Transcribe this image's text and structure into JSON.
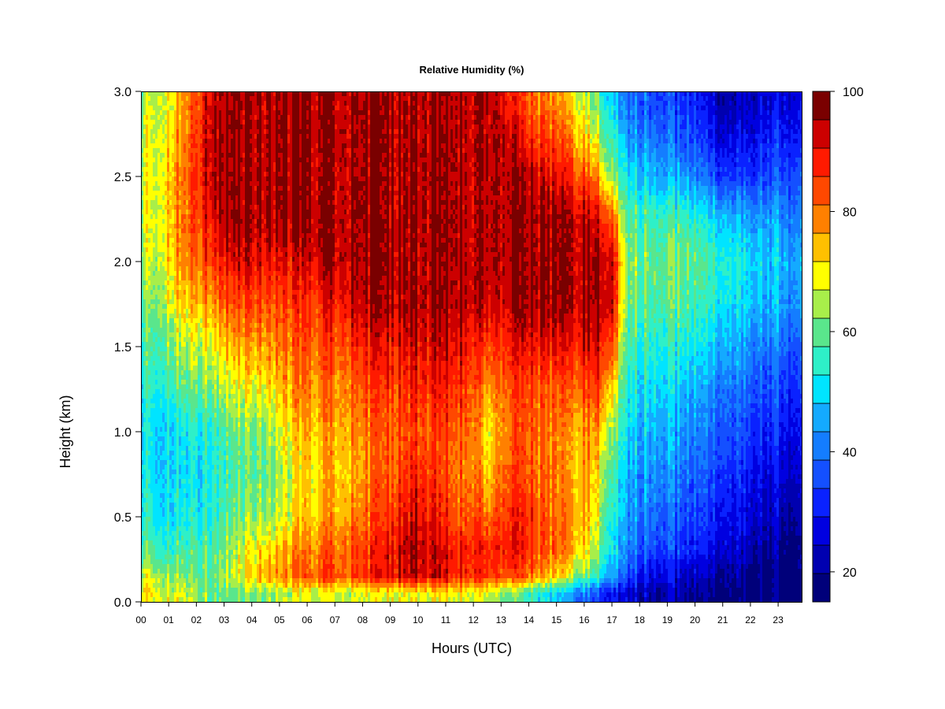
{
  "chart_data": {
    "type": "heatmap",
    "title": "Relative Humidity (%)",
    "xlabel": "Hours (UTC)",
    "ylabel": "Height (km)",
    "xlim": [
      0,
      23.85
    ],
    "ylim": [
      0.0,
      3.0
    ],
    "x_ticks": [
      "00",
      "01",
      "02",
      "03",
      "04",
      "05",
      "06",
      "07",
      "08",
      "09",
      "10",
      "11",
      "12",
      "13",
      "14",
      "15",
      "16",
      "17",
      "18",
      "19",
      "20",
      "21",
      "22",
      "23"
    ],
    "y_ticks": [
      "0.0",
      "0.5",
      "1.0",
      "1.5",
      "2.0",
      "2.5",
      "3.0"
    ],
    "colorbar": {
      "min": 15,
      "max": 100,
      "step": 5,
      "tick_values": [
        20,
        40,
        60,
        80,
        100
      ],
      "tick_labels": [
        "20",
        "40",
        "60",
        "80",
        "100"
      ],
      "colors": [
        "#00007a",
        "#0000b0",
        "#0000e0",
        "#0a22ff",
        "#1450ff",
        "#147dff",
        "#14aaff",
        "#00e4ff",
        "#2ef0c8",
        "#5ae68c",
        "#a8ee4a",
        "#ffff00",
        "#ffc000",
        "#ff8000",
        "#ff4800",
        "#ff1a00",
        "#cc0000",
        "#7a0000"
      ]
    },
    "grid": false,
    "heights_km": [
      0.05,
      0.15,
      0.3,
      0.5,
      0.75,
      1.0,
      1.25,
      1.5,
      1.75,
      2.0,
      2.25,
      2.5,
      2.75,
      2.95
    ],
    "profiles": [
      {
        "hour": 0.0,
        "rh": [
          74,
          70,
          60,
          56,
          54,
          53,
          56,
          58,
          62,
          68,
          70,
          70,
          68,
          66
        ]
      },
      {
        "hour": 0.5,
        "rh": [
          74,
          70,
          62,
          56,
          54,
          54,
          58,
          62,
          66,
          70,
          72,
          72,
          72,
          70
        ]
      },
      {
        "hour": 1.0,
        "rh": [
          72,
          68,
          60,
          55,
          53,
          54,
          60,
          66,
          72,
          76,
          78,
          78,
          76,
          74
        ]
      },
      {
        "hour": 1.5,
        "rh": [
          70,
          66,
          60,
          55,
          53,
          54,
          62,
          68,
          76,
          82,
          84,
          84,
          82,
          80
        ]
      },
      {
        "hour": 2.0,
        "rh": [
          68,
          64,
          60,
          56,
          54,
          56,
          64,
          70,
          78,
          86,
          90,
          90,
          90,
          88
        ]
      },
      {
        "hour": 2.5,
        "rh": [
          64,
          64,
          62,
          58,
          56,
          58,
          66,
          72,
          82,
          90,
          96,
          100,
          100,
          98
        ]
      },
      {
        "hour": 3.0,
        "rh": [
          62,
          66,
          64,
          60,
          58,
          60,
          68,
          76,
          86,
          94,
          100,
          100,
          100,
          100
        ]
      },
      {
        "hour": 3.5,
        "rh": [
          62,
          70,
          68,
          62,
          60,
          62,
          70,
          78,
          86,
          96,
          100,
          100,
          100,
          100
        ]
      },
      {
        "hour": 4.0,
        "rh": [
          64,
          76,
          72,
          66,
          62,
          64,
          72,
          80,
          88,
          96,
          100,
          100,
          100,
          100
        ]
      },
      {
        "hour": 4.5,
        "rh": [
          66,
          80,
          76,
          68,
          64,
          66,
          74,
          82,
          88,
          96,
          100,
          100,
          100,
          100
        ]
      },
      {
        "hour": 5.0,
        "rh": [
          66,
          80,
          76,
          68,
          66,
          70,
          76,
          82,
          88,
          94,
          100,
          100,
          100,
          100
        ]
      },
      {
        "hour": 5.5,
        "rh": [
          68,
          82,
          80,
          72,
          70,
          74,
          80,
          84,
          88,
          94,
          100,
          100,
          100,
          100
        ]
      },
      {
        "hour": 6.0,
        "rh": [
          70,
          86,
          82,
          76,
          74,
          78,
          82,
          86,
          90,
          96,
          100,
          100,
          100,
          100
        ]
      },
      {
        "hour": 6.5,
        "rh": [
          70,
          88,
          84,
          78,
          76,
          78,
          82,
          86,
          92,
          98,
          100,
          100,
          100,
          100
        ]
      },
      {
        "hour": 7.0,
        "rh": [
          70,
          88,
          86,
          80,
          78,
          80,
          84,
          88,
          94,
          100,
          100,
          100,
          100,
          100
        ]
      },
      {
        "hour": 7.5,
        "rh": [
          70,
          88,
          86,
          82,
          78,
          80,
          84,
          90,
          96,
          100,
          100,
          100,
          100,
          100
        ]
      },
      {
        "hour": 8.0,
        "rh": [
          70,
          90,
          88,
          84,
          80,
          82,
          86,
          92,
          98,
          100,
          100,
          100,
          100,
          100
        ]
      },
      {
        "hour": 8.5,
        "rh": [
          70,
          92,
          90,
          86,
          84,
          84,
          88,
          94,
          98,
          100,
          100,
          100,
          100,
          100
        ]
      },
      {
        "hour": 9.0,
        "rh": [
          72,
          94,
          94,
          90,
          86,
          86,
          90,
          94,
          100,
          100,
          100,
          100,
          100,
          100
        ]
      },
      {
        "hour": 9.5,
        "rh": [
          72,
          96,
          98,
          94,
          90,
          88,
          90,
          96,
          100,
          100,
          100,
          100,
          100,
          100
        ]
      },
      {
        "hour": 10.0,
        "rh": [
          72,
          98,
          100,
          96,
          92,
          88,
          92,
          96,
          100,
          100,
          100,
          100,
          100,
          100
        ]
      },
      {
        "hour": 10.5,
        "rh": [
          72,
          96,
          98,
          94,
          90,
          88,
          92,
          96,
          100,
          100,
          100,
          100,
          100,
          100
        ]
      },
      {
        "hour": 11.0,
        "rh": [
          72,
          94,
          94,
          90,
          86,
          88,
          92,
          96,
          100,
          100,
          100,
          100,
          100,
          100
        ]
      },
      {
        "hour": 11.5,
        "rh": [
          72,
          92,
          92,
          86,
          84,
          86,
          90,
          96,
          100,
          100,
          100,
          100,
          100,
          100
        ]
      },
      {
        "hour": 12.0,
        "rh": [
          72,
          94,
          96,
          90,
          86,
          86,
          90,
          94,
          100,
          100,
          100,
          100,
          100,
          100
        ]
      },
      {
        "hour": 12.5,
        "rh": [
          70,
          90,
          92,
          84,
          76,
          72,
          80,
          90,
          98,
          100,
          100,
          100,
          100,
          100
        ]
      },
      {
        "hour": 13.0,
        "rh": [
          66,
          90,
          94,
          90,
          86,
          82,
          86,
          92,
          98,
          100,
          100,
          100,
          100,
          98
        ]
      },
      {
        "hour": 13.5,
        "rh": [
          62,
          88,
          94,
          92,
          88,
          86,
          88,
          94,
          100,
          100,
          100,
          100,
          96,
          90
        ]
      },
      {
        "hour": 14.0,
        "rh": [
          58,
          84,
          90,
          90,
          86,
          86,
          88,
          94,
          100,
          100,
          100,
          98,
          90,
          86
        ]
      },
      {
        "hour": 14.5,
        "rh": [
          54,
          80,
          86,
          86,
          84,
          84,
          86,
          94,
          100,
          100,
          100,
          96,
          88,
          84
        ]
      },
      {
        "hour": 15.0,
        "rh": [
          50,
          76,
          84,
          84,
          82,
          82,
          86,
          94,
          100,
          100,
          100,
          94,
          86,
          80
        ]
      },
      {
        "hour": 15.5,
        "rh": [
          46,
          70,
          80,
          82,
          80,
          80,
          86,
          94,
          100,
          100,
          100,
          92,
          82,
          76
        ]
      },
      {
        "hour": 16.0,
        "rh": [
          42,
          64,
          76,
          80,
          80,
          82,
          88,
          96,
          100,
          100,
          100,
          88,
          76,
          70
        ]
      },
      {
        "hour": 16.5,
        "rh": [
          36,
          56,
          66,
          70,
          74,
          80,
          88,
          96,
          100,
          100,
          96,
          80,
          68,
          62
        ]
      },
      {
        "hour": 17.0,
        "rh": [
          30,
          46,
          52,
          56,
          60,
          66,
          76,
          88,
          98,
          98,
          88,
          66,
          56,
          50
        ]
      },
      {
        "hour": 17.5,
        "rh": [
          26,
          38,
          44,
          46,
          48,
          52,
          56,
          60,
          64,
          66,
          62,
          54,
          46,
          42
        ]
      },
      {
        "hour": 18.0,
        "rh": [
          24,
          32,
          40,
          44,
          46,
          50,
          54,
          58,
          62,
          64,
          60,
          52,
          44,
          40
        ]
      },
      {
        "hour": 18.5,
        "rh": [
          22,
          30,
          38,
          42,
          46,
          50,
          54,
          58,
          62,
          64,
          60,
          50,
          42,
          38
        ]
      },
      {
        "hour": 19.0,
        "rh": [
          22,
          28,
          36,
          40,
          44,
          48,
          52,
          56,
          62,
          64,
          60,
          48,
          40,
          36
        ]
      },
      {
        "hour": 19.5,
        "rh": [
          21,
          26,
          34,
          38,
          42,
          46,
          50,
          56,
          62,
          64,
          60,
          46,
          38,
          34
        ]
      },
      {
        "hour": 20.0,
        "rh": [
          20,
          24,
          32,
          36,
          40,
          44,
          48,
          54,
          60,
          62,
          58,
          44,
          36,
          32
        ]
      },
      {
        "hour": 20.5,
        "rh": [
          20,
          24,
          30,
          34,
          38,
          42,
          46,
          52,
          58,
          60,
          54,
          40,
          32,
          28
        ]
      },
      {
        "hour": 21.0,
        "rh": [
          19,
          22,
          28,
          32,
          36,
          40,
          44,
          50,
          56,
          58,
          52,
          36,
          28,
          24
        ]
      },
      {
        "hour": 21.5,
        "rh": [
          18,
          22,
          26,
          30,
          34,
          38,
          42,
          48,
          54,
          56,
          50,
          36,
          28,
          24
        ]
      },
      {
        "hour": 22.0,
        "rh": [
          18,
          20,
          24,
          28,
          32,
          36,
          40,
          46,
          52,
          54,
          48,
          36,
          30,
          26
        ]
      },
      {
        "hour": 22.5,
        "rh": [
          18,
          20,
          22,
          26,
          30,
          34,
          38,
          44,
          50,
          52,
          48,
          38,
          32,
          28
        ]
      },
      {
        "hour": 23.0,
        "rh": [
          17,
          18,
          20,
          24,
          28,
          32,
          36,
          42,
          48,
          50,
          46,
          38,
          32,
          28
        ]
      },
      {
        "hour": 23.5,
        "rh": [
          16,
          17,
          19,
          22,
          26,
          30,
          34,
          40,
          46,
          48,
          44,
          38,
          32,
          28
        ]
      },
      {
        "hour": 23.85,
        "rh": [
          16,
          17,
          19,
          22,
          26,
          30,
          34,
          40,
          46,
          48,
          44,
          38,
          32,
          28
        ]
      }
    ]
  }
}
